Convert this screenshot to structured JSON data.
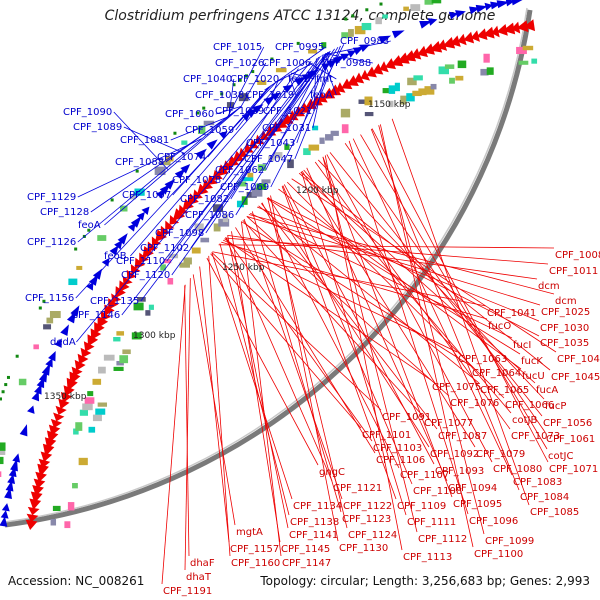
{
  "title": "Clostridium perfringens ATCC 13124, complete genome",
  "footer": {
    "accession": "Accession: NC_008261",
    "summary": "Topology: circular; Length: 3,256,683 bp; Genes: 2,993"
  },
  "colors": {
    "forward_strand": "#0000dd",
    "reverse_strand": "#ee0000",
    "backbone": "#888888"
  },
  "kbp_ticks": [
    "1150 kbp",
    "1200 kbp",
    "1250 kbp",
    "1300 kbp",
    "1350 kbp"
  ],
  "blue_labels": [
    "CPF_1015",
    "CPF_0995",
    "CPF_0983",
    "CPF_1026",
    "CPF_1006",
    "CPF_0988",
    "CPF_1040",
    "CPF_1020",
    "feoB",
    "fmt",
    "CPF_1038",
    "CPF_1019",
    "feoA",
    "CPF_1039",
    "CPF_1021",
    "CPF_1090",
    "CPF_1060",
    "CPF_1031",
    "CPF_1089",
    "CPF_1059",
    "CPF_1081",
    "CPF_1043",
    "CPF_1088",
    "CPF_1074",
    "CPF_1047",
    "CPF_1062",
    "CPF_1078",
    "CPF_1069",
    "CPF_1097",
    "CPF_1082",
    "CPF_1129",
    "CPF_1128",
    "CPF_1086",
    "feoA",
    "CPF_1098",
    "CPF_1126",
    "CPF_1102",
    "feoB",
    "CPF_1110",
    "CPF_1120",
    "CPF_1156",
    "CPF_1135",
    "CPF_1146",
    "dedA"
  ],
  "red_labels": [
    "CPF_1008",
    "CPF_1011",
    "dcm",
    "dcm",
    "CPF_1041",
    "CPF_1025",
    "fucO",
    "CPF_1030",
    "CPF_1035",
    "fucI",
    "fucK",
    "CPF_1042",
    "CPF_1063",
    "fucU",
    "CPF_1045",
    "CPF_1064",
    "fucA",
    "CPF_1075",
    "CPF_1065",
    "CPF_1076",
    "CPF_1066",
    "fucP",
    "cotJB",
    "CPF_1056",
    "CPF_1077",
    "CPF_1073",
    "CPF_1091",
    "CPF_1087",
    "CPF_1061",
    "CPF_1101",
    "cotJC",
    "CPF_1103",
    "CPF_1079",
    "CPF_1071",
    "CPF_1106",
    "CPF_1092",
    "CPF_1080",
    "gngC",
    "CPF_1107",
    "CPF_1093",
    "CPF_1083",
    "CPF_1121",
    "CPF_1108",
    "CPF_1094",
    "CPF_1084",
    "CPF_1134",
    "CPF_1122",
    "CPF_1109",
    "CPF_1095",
    "CPF_1085",
    "CPF_1138",
    "CPF_1123",
    "CPF_1111",
    "CPF_1096",
    "mgtA",
    "CPF_1141",
    "CPF_1124",
    "CPF_1112",
    "CPF_1099",
    "CPF_1157",
    "CPF_1145",
    "CPF_1130",
    "CPF_1100",
    "CPF_1160",
    "CPF_1147",
    "CPF_1113",
    "dhaF",
    "dhaT",
    "CPF_1191"
  ]
}
